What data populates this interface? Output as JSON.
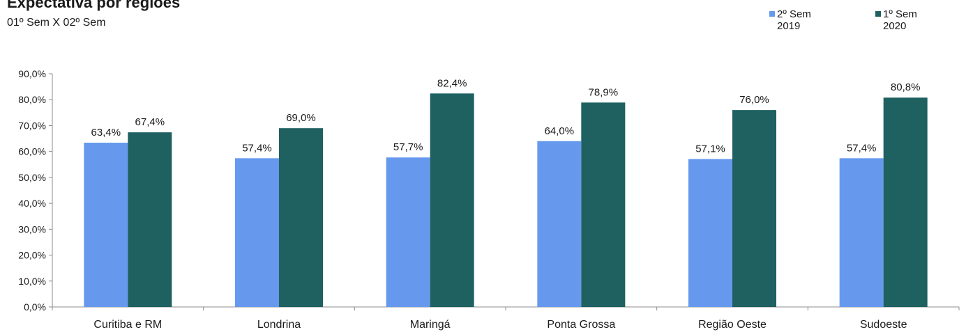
{
  "chart_data": {
    "type": "bar",
    "title": "Expectativa por regiões",
    "subtitle": "01º Sem X 02º Sem",
    "categories": [
      "Curitiba e RM",
      "Londrina",
      "Maringá",
      "Ponta Grossa",
      "Região Oeste",
      "Sudoeste"
    ],
    "series": [
      {
        "name": "2º Sem 2019",
        "color": "#6699EE",
        "values": [
          63.4,
          57.4,
          57.7,
          64.0,
          57.1,
          57.4
        ],
        "labels": [
          "63,4%",
          "57,4%",
          "57,7%",
          "64,0%",
          "57,1%",
          "57,4%"
        ]
      },
      {
        "name": "1º Sem 2020",
        "color": "#1F6060",
        "values": [
          67.4,
          69.0,
          82.4,
          78.9,
          76.0,
          80.8
        ],
        "labels": [
          "67,4%",
          "69,0%",
          "82,4%",
          "78,9%",
          "76,0%",
          "80,8%"
        ]
      }
    ],
    "ylim": [
      0,
      90
    ],
    "yticks": [
      "0,0%",
      "10,0%",
      "20,0%",
      "30,0%",
      "40,0%",
      "50,0%",
      "60,0%",
      "70,0%",
      "80,0%",
      "90,0%"
    ],
    "legend_position": "top-right",
    "grid": false
  }
}
